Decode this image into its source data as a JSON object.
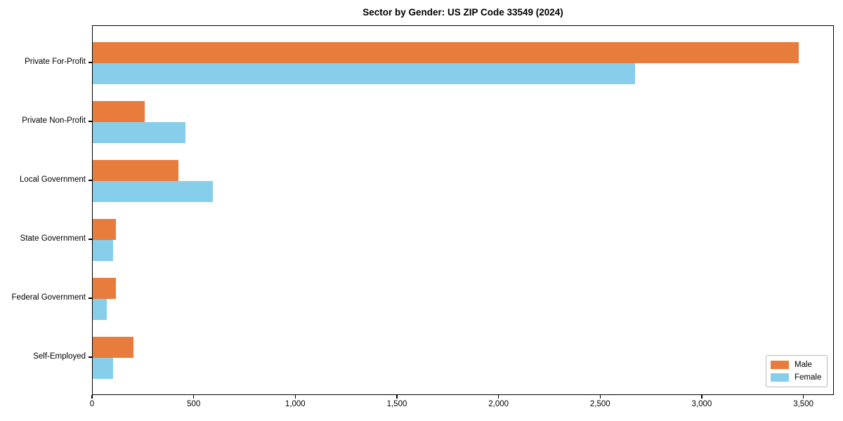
{
  "chart_data": {
    "type": "bar",
    "orientation": "horizontal",
    "title": "Sector by Gender: US ZIP Code 33549 (2024)",
    "xlabel": "",
    "ylabel": "",
    "grid": false,
    "categories": [
      "Private For-Profit",
      "Private Non-Profit",
      "Local Government",
      "State Government",
      "Federal Government",
      "Self-Employed"
    ],
    "series": [
      {
        "name": "Male",
        "color": "#E87C3C",
        "values": [
          3475,
          255,
          420,
          115,
          115,
          200
        ]
      },
      {
        "name": "Female",
        "color": "#87CEEB",
        "values": [
          2670,
          455,
          590,
          100,
          70,
          100
        ]
      }
    ],
    "xlim": [
      0,
      3650
    ],
    "xticks": [
      {
        "value": 0,
        "label": "0"
      },
      {
        "value": 500,
        "label": "500"
      },
      {
        "value": 1000,
        "label": "1,000"
      },
      {
        "value": 1500,
        "label": "1,500"
      },
      {
        "value": 2000,
        "label": "2,000"
      },
      {
        "value": 2500,
        "label": "2,500"
      },
      {
        "value": 3000,
        "label": "3,000"
      },
      {
        "value": 3500,
        "label": "3,500"
      }
    ],
    "legend": {
      "position": "lower right",
      "entries": [
        "Male",
        "Female"
      ]
    }
  }
}
